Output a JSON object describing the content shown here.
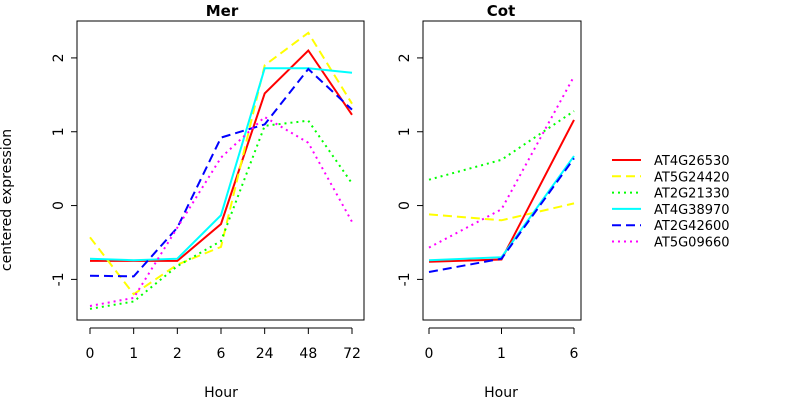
{
  "ylabel": "centered expression",
  "chart_data": [
    {
      "type": "line",
      "title": "Mer",
      "xlabel": "Hour",
      "categories": [
        "0",
        "1",
        "2",
        "6",
        "24",
        "48",
        "72"
      ],
      "ylim": [
        -1.55,
        2.5
      ],
      "yticks": [
        "-1",
        "0",
        "1",
        "2"
      ],
      "series": [
        {
          "name": "AT4G26530",
          "color": "#ff0000",
          "dash": "solid",
          "values": [
            -0.75,
            -0.75,
            -0.75,
            -0.25,
            1.52,
            2.1,
            1.23
          ]
        },
        {
          "name": "AT5G24420",
          "color": "#ffff00",
          "dash": "dashed",
          "values": [
            -0.43,
            -1.2,
            -0.8,
            -0.56,
            1.9,
            2.34,
            1.38
          ]
        },
        {
          "name": "AT2G21330",
          "color": "#00ff00",
          "dash": "dotted",
          "values": [
            -1.4,
            -1.3,
            -0.82,
            -0.48,
            1.08,
            1.15,
            0.3
          ]
        },
        {
          "name": "AT4G38970",
          "color": "#00ffff",
          "dash": "solid",
          "values": [
            -0.72,
            -0.74,
            -0.72,
            -0.13,
            1.86,
            1.86,
            1.8
          ]
        },
        {
          "name": "AT2G42600",
          "color": "#0000ff",
          "dash": "dashed",
          "values": [
            -0.95,
            -0.96,
            -0.3,
            0.92,
            1.1,
            1.85,
            1.3
          ]
        },
        {
          "name": "AT5G09660",
          "color": "#ff00ff",
          "dash": "dotted",
          "values": [
            -1.36,
            -1.25,
            -0.3,
            0.65,
            1.2,
            0.85,
            -0.22
          ]
        }
      ]
    },
    {
      "type": "line",
      "title": "Cot",
      "xlabel": "Hour",
      "categories": [
        "0",
        "1",
        "6"
      ],
      "ylim": [
        -1.55,
        2.5
      ],
      "yticks": [
        "-1",
        "0",
        "1",
        "2"
      ],
      "series": [
        {
          "name": "AT4G26530",
          "color": "#ff0000",
          "dash": "solid",
          "values": [
            -0.76,
            -0.73,
            1.16
          ]
        },
        {
          "name": "AT5G24420",
          "color": "#ffff00",
          "dash": "dashed",
          "values": [
            -0.12,
            -0.2,
            0.03
          ]
        },
        {
          "name": "AT2G21330",
          "color": "#00ff00",
          "dash": "dotted",
          "values": [
            0.35,
            0.62,
            1.28
          ]
        },
        {
          "name": "AT4G38970",
          "color": "#00ffff",
          "dash": "solid",
          "values": [
            -0.74,
            -0.7,
            0.67
          ]
        },
        {
          "name": "AT2G42600",
          "color": "#0000ff",
          "dash": "dashed",
          "values": [
            -0.9,
            -0.72,
            0.64
          ]
        },
        {
          "name": "AT5G09660",
          "color": "#ff00ff",
          "dash": "dotted",
          "values": [
            -0.57,
            -0.05,
            1.75
          ]
        }
      ]
    }
  ],
  "legend": [
    {
      "label": "AT4G26530",
      "color": "#ff0000",
      "dash": "solid"
    },
    {
      "label": "AT5G24420",
      "color": "#ffff00",
      "dash": "dashed"
    },
    {
      "label": "AT2G21330",
      "color": "#00ff00",
      "dash": "dotted"
    },
    {
      "label": "AT4G38970",
      "color": "#00ffff",
      "dash": "solid"
    },
    {
      "label": "AT2G42600",
      "color": "#0000ff",
      "dash": "dashed"
    },
    {
      "label": "AT5G09660",
      "color": "#ff00ff",
      "dash": "dotted"
    }
  ]
}
